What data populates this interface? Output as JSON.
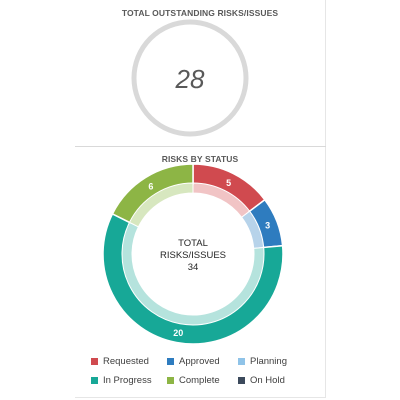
{
  "kpi": {
    "title": "TOTAL OUTSTANDING RISKS/ISSUES",
    "value": "28"
  },
  "chart_data": {
    "type": "donut",
    "title": "RISKS BY STATUS",
    "center_label_line1": "TOTAL",
    "center_label_line2": "RISKS/ISSUES",
    "center_value": "34",
    "categories": [
      "Requested",
      "Approved",
      "Planning",
      "In Progress",
      "Complete",
      "On Hold"
    ],
    "values": [
      5,
      3,
      0,
      20,
      6,
      0
    ],
    "colors": [
      "#d04a4f",
      "#2e7cbf",
      "#8fc3e8",
      "#17a897",
      "#8db545",
      "#3c4a5c"
    ],
    "inner_colors": [
      "#f1c4c5",
      "#b7d3ea",
      "#dcecf8",
      "#b5e3dd",
      "#d7e7bf",
      "#c6cbd2"
    ],
    "legend_position": "bottom"
  }
}
